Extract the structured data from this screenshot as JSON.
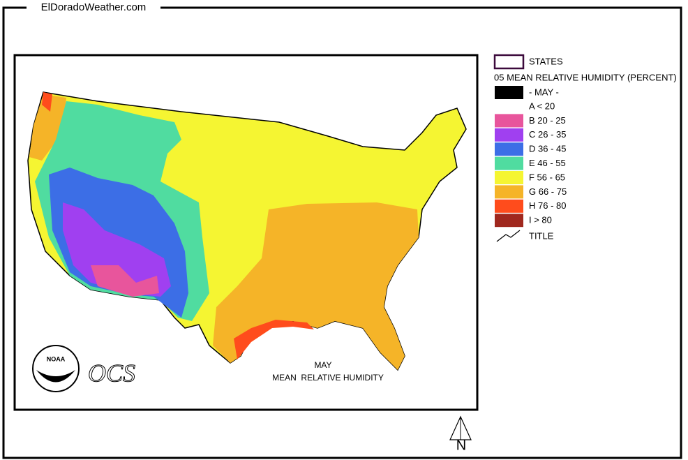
{
  "header": {
    "site": "ElDoradoWeather.com"
  },
  "map": {
    "title_month": "MAY",
    "title": "MEAN  RELATIVE HUMIDITY",
    "logo_text": "NOAA",
    "logo_mark": "OCS",
    "north": "N"
  },
  "legend": {
    "states": "STATES",
    "heading": "05 MEAN RELATIVE HUMIDITY (PERCENT)",
    "period": "- MAY -",
    "period_color": "#000000",
    "items": [
      {
        "label": "A < 20",
        "color": "#ffffff"
      },
      {
        "label": "B 20 - 25",
        "color": "#e8559c"
      },
      {
        "label": "C 26 - 35",
        "color": "#a040f0"
      },
      {
        "label": "D 36 - 45",
        "color": "#3c6ee6"
      },
      {
        "label": "E 46 - 55",
        "color": "#50dca0"
      },
      {
        "label": "F 56 - 65",
        "color": "#f5f532"
      },
      {
        "label": "G 66 - 75",
        "color": "#f5b428"
      },
      {
        "label": "H 76 - 80",
        "color": "#ff4c1c"
      },
      {
        "label": "I > 80",
        "color": "#a0281e"
      }
    ],
    "title_item": "TITLE"
  }
}
